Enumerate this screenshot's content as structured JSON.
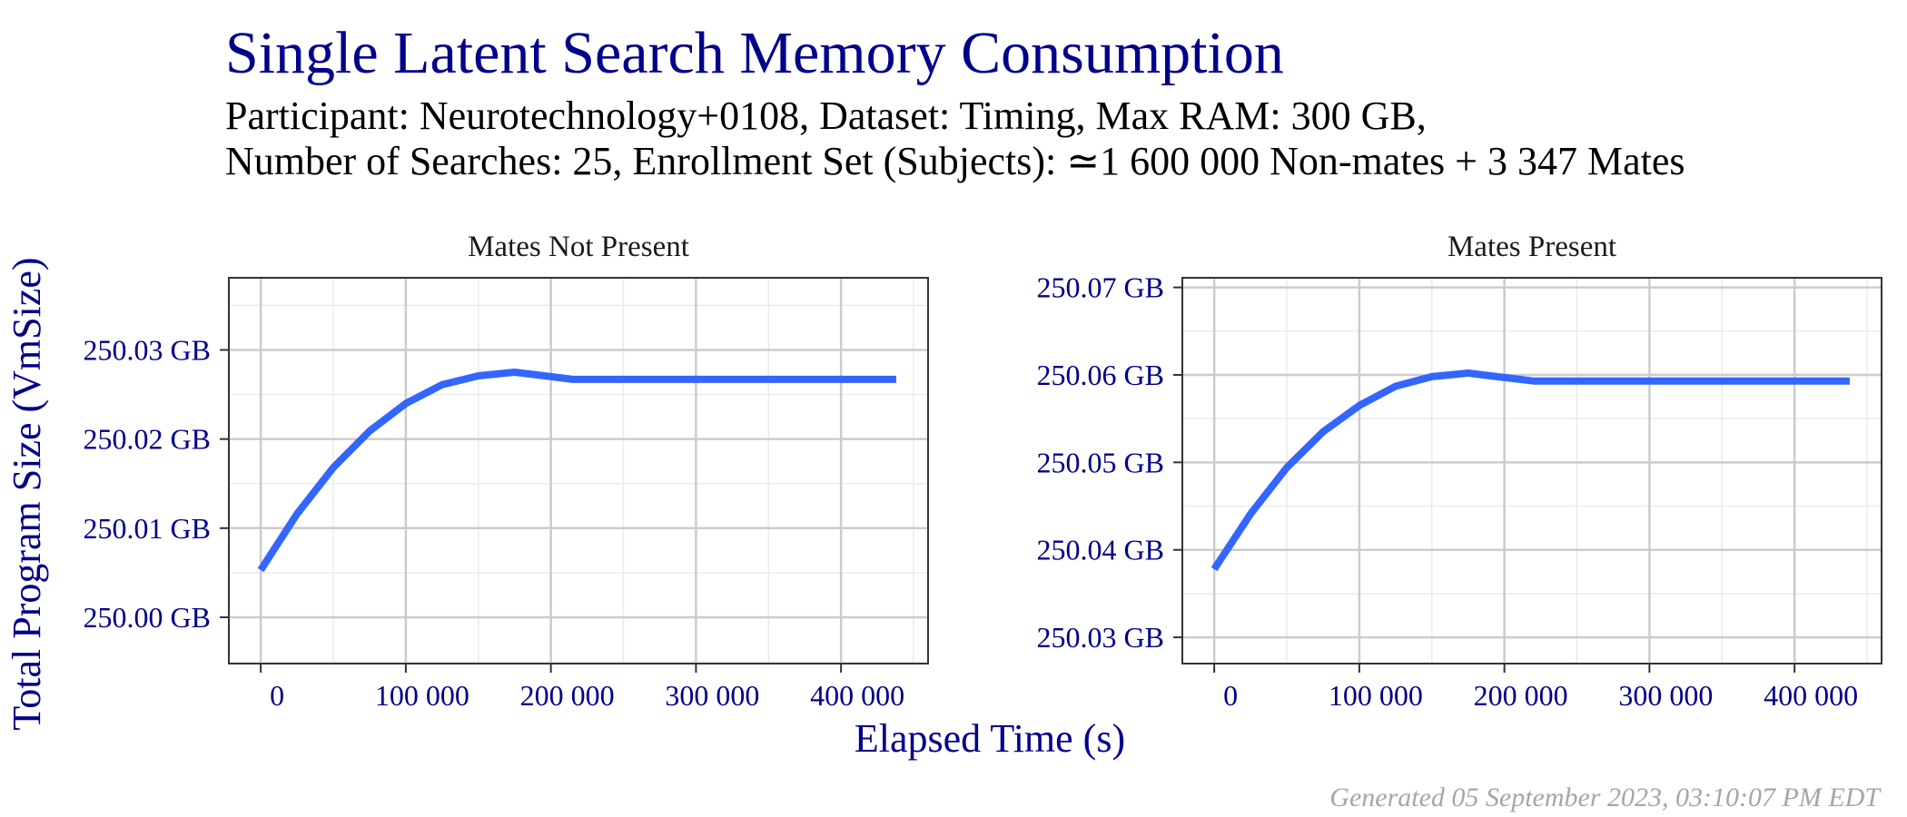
{
  "title": "Single Latent Search Memory Consumption",
  "subtitle_line1": "Participant: Neurotechnology+0108, Dataset: Timing, Max RAM: 300 GB,",
  "subtitle_line2": "Number of Searches: 25, Enrollment Set (Subjects): ≃1 600 000 Non-mates + 3 347 Mates",
  "xlabel": "Elapsed Time (s)",
  "ylabel": "Total Program Size (VmSize)",
  "footer": "Generated 05 September 2023, 03:10:07 PM EDT",
  "colors": {
    "line": "#3366FF",
    "text": "#00008B",
    "grid_major": "#cccccc",
    "grid_minor": "#ebebeb",
    "border": "#333333"
  },
  "chart_data": [
    {
      "type": "line",
      "panel": "Mates Not Present",
      "xlim": [
        -22000,
        460000
      ],
      "ylim": [
        249.9948,
        250.0381
      ],
      "x_ticks": [
        0,
        100000,
        200000,
        300000,
        400000
      ],
      "x_tick_labels": [
        "0",
        "100 000",
        "200 000",
        "300 000",
        "400 000"
      ],
      "y_ticks": [
        250.0,
        250.01,
        250.02,
        250.03
      ],
      "y_tick_labels": [
        "250.00 GB",
        "250.01 GB",
        "250.02 GB",
        "250.03 GB"
      ],
      "grid": true,
      "series": [
        {
          "x": [
            0,
            25000,
            50000,
            75000,
            100000,
            125000,
            150000,
            175000,
            200000,
            215000,
            250000,
            300000,
            350000,
            400000,
            438000
          ],
          "y": [
            250.0053,
            250.0116,
            250.0168,
            250.0209,
            250.024,
            250.0261,
            250.0271,
            250.0275,
            250.027,
            250.0267,
            250.0267,
            250.0267,
            250.0267,
            250.0267,
            250.0267
          ]
        }
      ]
    },
    {
      "type": "line",
      "panel": "Mates Present",
      "xlim": [
        -22000,
        460000
      ],
      "ylim": [
        250.027,
        250.0711
      ],
      "x_ticks": [
        0,
        100000,
        200000,
        300000,
        400000
      ],
      "x_tick_labels": [
        "0",
        "100 000",
        "200 000",
        "300 000",
        "400 000"
      ],
      "y_ticks": [
        250.03,
        250.04,
        250.05,
        250.06,
        250.07
      ],
      "y_tick_labels": [
        "250.03 GB",
        "250.04 GB",
        "250.05 GB",
        "250.06 GB",
        "250.07 GB"
      ],
      "grid": true,
      "series": [
        {
          "x": [
            0,
            25000,
            50000,
            75000,
            100000,
            125000,
            150000,
            175000,
            200000,
            220000,
            250000,
            300000,
            350000,
            400000,
            438000
          ],
          "y": [
            250.0378,
            250.0441,
            250.0494,
            250.0535,
            250.0565,
            250.0587,
            250.0598,
            250.0602,
            250.0597,
            250.0593,
            250.0593,
            250.0593,
            250.0593,
            250.0593,
            250.0593
          ]
        }
      ]
    }
  ]
}
